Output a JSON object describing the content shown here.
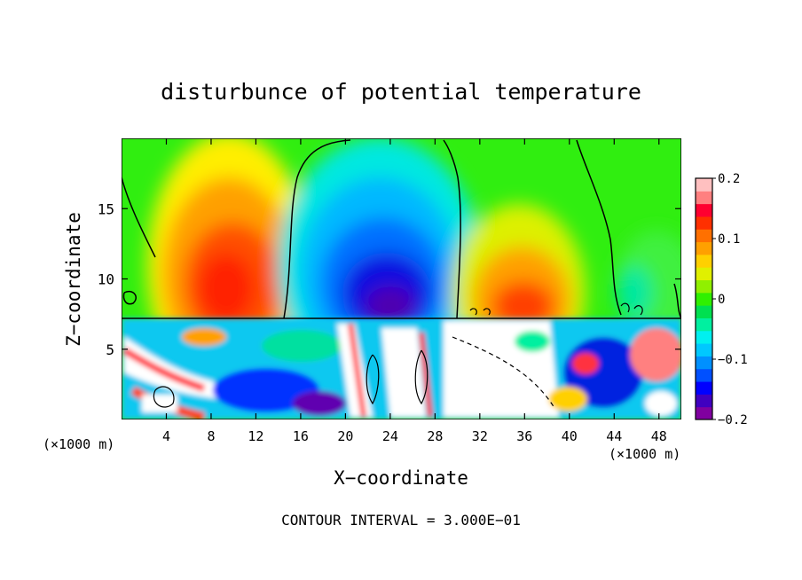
{
  "chart_data": {
    "type": "heatmap",
    "title": "disturbunce of potential temperature",
    "xlabel": "X−coordinate",
    "ylabel": "Z−coordinate",
    "x_unit_left": "(×1000 m)",
    "x_unit_right": "(×1000 m)",
    "footer": "CONTOUR INTERVAL = 3.000E−01",
    "xlim": [
      0,
      50
    ],
    "ylim": [
      0,
      20
    ],
    "x_ticks": [
      4,
      8,
      12,
      16,
      20,
      24,
      28,
      32,
      36,
      40,
      44,
      48
    ],
    "x_tick_labels": [
      "4",
      "8",
      "12",
      "16",
      "20",
      "24",
      "28",
      "32",
      "36",
      "40",
      "44",
      "48"
    ],
    "y_ticks": [
      5,
      10,
      15
    ],
    "y_tick_labels": [
      "5",
      "10",
      "15"
    ],
    "colorbar": {
      "range": [
        -0.2,
        0.2
      ],
      "tick_labels": [
        "0.2",
        "0.1",
        "0",
        "−0.1",
        "−0.2"
      ],
      "tick_values": [
        0.2,
        0.1,
        0,
        -0.1,
        -0.2
      ],
      "colors_low_to_high": [
        "#8000a0",
        "#4000c0",
        "#0000ff",
        "#0050ff",
        "#0090ff",
        "#00c8ff",
        "#00f0f0",
        "#00f0a0",
        "#00e050",
        "#30f000",
        "#90f000",
        "#e0f000",
        "#ffd000",
        "#ffa000",
        "#ff7000",
        "#ff3000",
        "#ff0030",
        "#ff8080",
        "#ffc0c0"
      ]
    },
    "upper_layer_features": [
      {
        "kind": "warm",
        "x_center": 9.5,
        "z_top": 16,
        "peak": 0.15
      },
      {
        "kind": "cold",
        "x_center": 23,
        "z_top": 18,
        "peak": -0.2
      },
      {
        "kind": "warm",
        "x_center": 35.5,
        "z_top": 14,
        "peak": 0.12
      },
      {
        "kind": "warm",
        "x_center": 48,
        "z_top": 11,
        "peak": 0.02
      }
    ],
    "layer_boundary_z": 7.2,
    "grid": false,
    "legend": "colorbar-right"
  }
}
